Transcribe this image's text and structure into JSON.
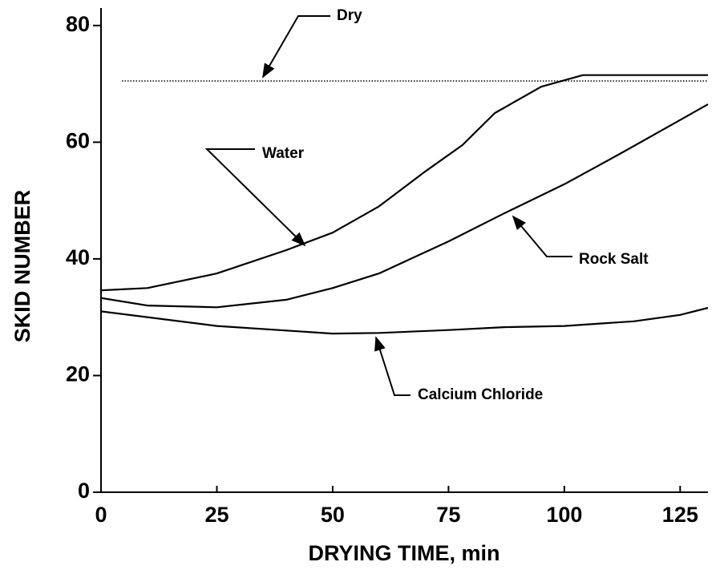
{
  "chart_data": {
    "type": "line",
    "xlabel": "DRYING TIME, min",
    "ylabel": "SKID NUMBER",
    "xlim": [
      0,
      131
    ],
    "ylim": [
      0,
      83
    ],
    "xticks": [
      0,
      25,
      50,
      75,
      100,
      125
    ],
    "yticks": [
      0,
      20,
      40,
      60,
      80
    ],
    "series": [
      {
        "name": "Dry",
        "color": "#000000",
        "style": "dotted",
        "x": [
          4.5,
          131
        ],
        "values": [
          70.5,
          70.5
        ]
      },
      {
        "name": "Water",
        "color": "#000000",
        "style": "solid",
        "x": [
          0,
          10,
          25,
          40,
          50,
          60,
          70,
          78,
          85,
          95,
          104,
          131
        ],
        "values": [
          34.6,
          35,
          37.5,
          41.5,
          44.5,
          49,
          55,
          59.5,
          65,
          69.5,
          71.5,
          71.5
        ]
      },
      {
        "name": "Rock Salt",
        "color": "#000000",
        "style": "solid",
        "x": [
          0,
          10,
          25,
          40,
          50,
          60,
          75,
          87,
          100,
          112,
          125,
          131
        ],
        "values": [
          33.3,
          32,
          31.7,
          33,
          35,
          37.5,
          43,
          47.8,
          52.8,
          58,
          63.8,
          66.5
        ]
      },
      {
        "name": "Calcium Chloride",
        "color": "#000000",
        "style": "solid",
        "x": [
          0,
          25,
          50,
          60,
          75,
          87,
          100,
          115,
          125,
          131
        ],
        "values": [
          31,
          28.5,
          27.2,
          27.3,
          27.8,
          28.3,
          28.5,
          29.3,
          30.4,
          31.6
        ]
      }
    ]
  }
}
